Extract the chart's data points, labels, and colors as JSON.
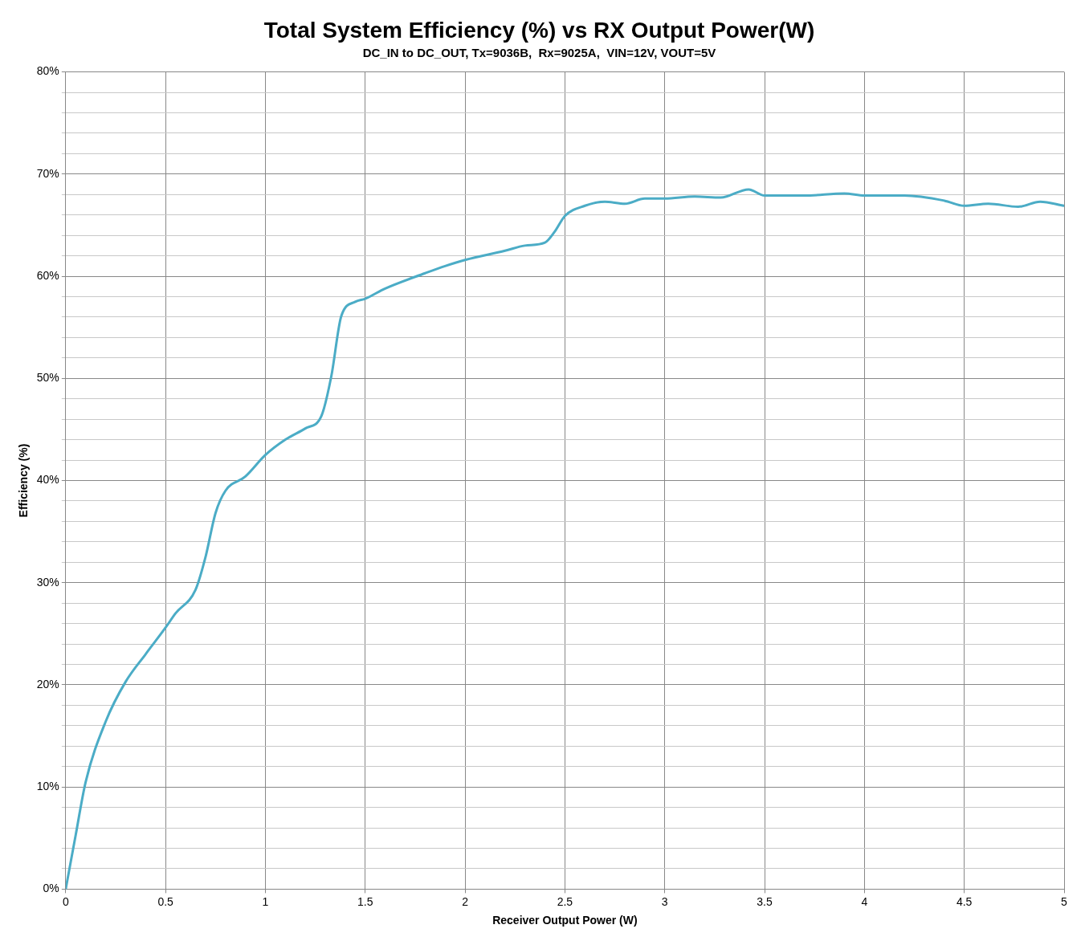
{
  "chart_data": {
    "type": "line",
    "title": "Total System Efficiency (%) vs RX Output Power(W)",
    "subtitle": "DC_IN to DC_OUT, Tx=9036B,  Rx=9025A,  VIN=12V, VOUT=5V",
    "xlabel": "Receiver Output Power (W)",
    "ylabel": "Efficiency (%)",
    "x": [
      0,
      0.05,
      0.1,
      0.2,
      0.3,
      0.4,
      0.5,
      0.55,
      0.65,
      0.7,
      0.75,
      0.8,
      0.9,
      1.0,
      1.1,
      1.2,
      1.28,
      1.33,
      1.38,
      1.45,
      1.5,
      1.6,
      1.8,
      1.9,
      2.0,
      2.2,
      2.3,
      2.4,
      2.45,
      2.5,
      2.6,
      2.7,
      2.8,
      2.9,
      3.0,
      3.15,
      3.28,
      3.42,
      3.5,
      3.7,
      3.9,
      4.0,
      4.2,
      4.4,
      4.5,
      4.62,
      4.77,
      4.88,
      5.0
    ],
    "series": [
      {
        "color": "#4bacc6",
        "values": [
          0,
          5.3,
          10.5,
          16.4,
          20.3,
          23,
          25.6,
          27,
          29.3,
          32.5,
          36.8,
          39,
          40.4,
          42.5,
          44,
          45.1,
          46.3,
          50.2,
          56.1,
          57.5,
          57.8,
          58.8,
          60.3,
          61,
          61.6,
          62.5,
          63,
          63.3,
          64.4,
          65.9,
          66.9,
          67.3,
          67.1,
          67.6,
          67.6,
          67.8,
          67.7,
          68.5,
          67.9,
          67.9,
          68.1,
          67.9,
          67.9,
          67.4,
          66.9,
          67.1,
          66.8,
          67.3,
          66.9
        ]
      }
    ],
    "xlim": [
      0,
      5
    ],
    "xticks": [
      0,
      0.5,
      1,
      1.5,
      2,
      2.5,
      3,
      3.5,
      4,
      4.5,
      5
    ],
    "ylim": [
      0,
      80
    ],
    "yticks": [
      {
        "value": 0,
        "label": "0%"
      },
      {
        "value": 2,
        "label": null
      },
      {
        "value": 4,
        "label": null
      },
      {
        "value": 6,
        "label": null
      },
      {
        "value": 8,
        "label": null
      },
      {
        "value": 10,
        "label": "10%"
      },
      {
        "value": 12,
        "label": null
      },
      {
        "value": 14,
        "label": null
      },
      {
        "value": 16,
        "label": null
      },
      {
        "value": 18,
        "label": null
      },
      {
        "value": 20,
        "label": "20%"
      },
      {
        "value": 22,
        "label": null
      },
      {
        "value": 24,
        "label": null
      },
      {
        "value": 26,
        "label": null
      },
      {
        "value": 28,
        "label": null
      },
      {
        "value": 30,
        "label": "30%"
      },
      {
        "value": 32,
        "label": null
      },
      {
        "value": 34,
        "label": null
      },
      {
        "value": 36,
        "label": null
      },
      {
        "value": 38,
        "label": null
      },
      {
        "value": 40,
        "label": "40%"
      },
      {
        "value": 42,
        "label": null
      },
      {
        "value": 44,
        "label": null
      },
      {
        "value": 46,
        "label": null
      },
      {
        "value": 48,
        "label": null
      },
      {
        "value": 50,
        "label": "50%"
      },
      {
        "value": 52,
        "label": null
      },
      {
        "value": 54,
        "label": null
      },
      {
        "value": 56,
        "label": null
      },
      {
        "value": 58,
        "label": null
      },
      {
        "value": 60,
        "label": "60%"
      },
      {
        "value": 62,
        "label": null
      },
      {
        "value": 64,
        "label": null
      },
      {
        "value": 66,
        "label": null
      },
      {
        "value": 68,
        "label": null
      },
      {
        "value": 70,
        "label": "70%"
      },
      {
        "value": 72,
        "label": null
      },
      {
        "value": 74,
        "label": null
      },
      {
        "value": 76,
        "label": null
      },
      {
        "value": 78,
        "label": null
      },
      {
        "value": 80,
        "label": "80%"
      }
    ],
    "grid": true,
    "legend": false,
    "marker": "none",
    "line_style": "solid"
  }
}
